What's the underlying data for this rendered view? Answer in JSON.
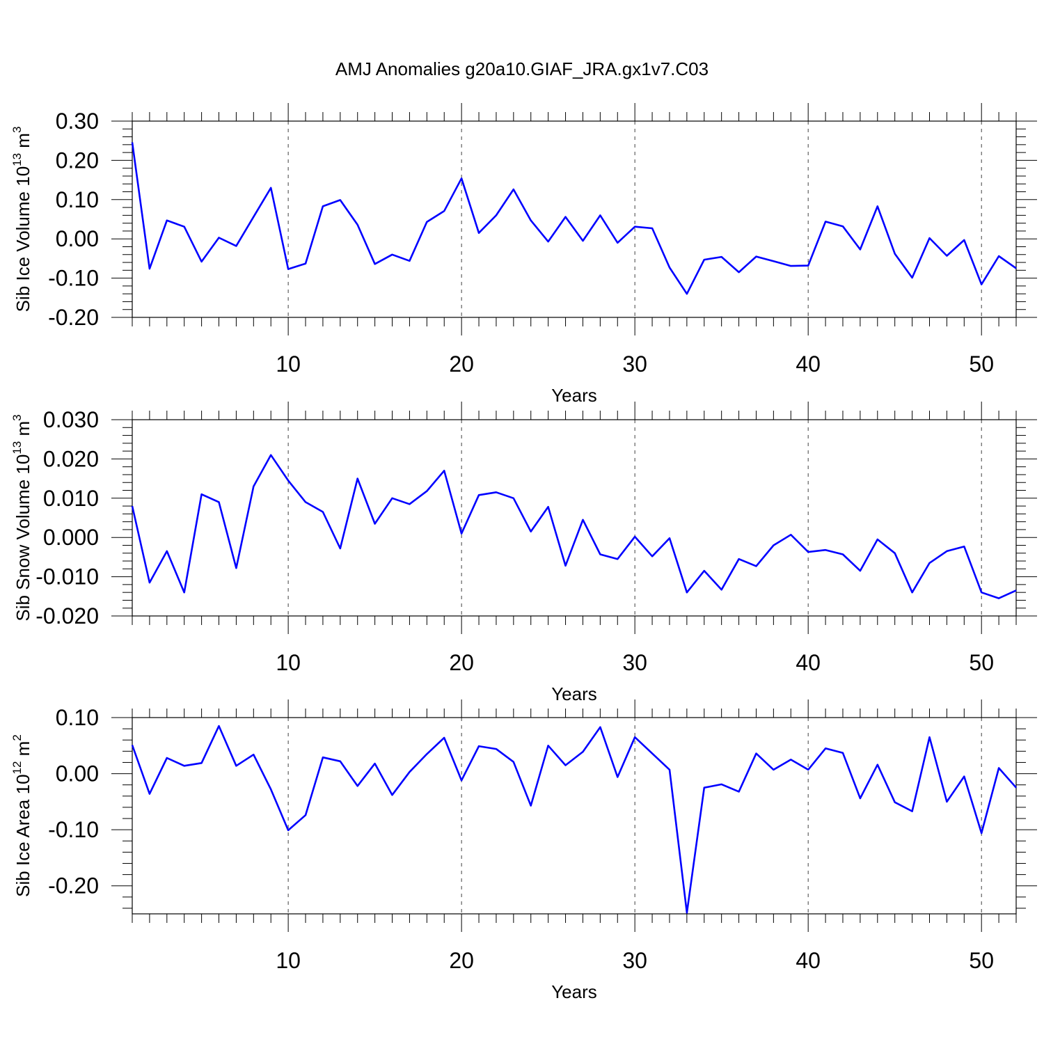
{
  "title": "AMJ Anomalies g20a10.GIAF_JRA.gx1v7.C03",
  "colors": {
    "line": "#0000ff",
    "axis": "#000000",
    "grid": "#000000",
    "background": "#ffffff"
  },
  "chart_data": [
    {
      "type": "line",
      "title": "",
      "xlabel": "Years",
      "ylabel": "Sib Ice Volume 10",
      "ylabel_sup": "13",
      "ylabel_unit": " m",
      "ylabel_unit_sup": "3",
      "xlim": [
        1,
        52
      ],
      "ylim": [
        -0.2,
        0.3
      ],
      "xticks": [
        10,
        20,
        30,
        40,
        50
      ],
      "yticks": [
        0.3,
        0.2,
        0.1,
        0.0,
        -0.1,
        -0.2
      ],
      "ytick_labels": [
        "0.30",
        "0.20",
        "0.10",
        "0.00",
        "-0.10",
        "-0.20"
      ],
      "grid": "vertical dashed at major x ticks",
      "x": [
        1,
        2,
        3,
        4,
        5,
        6,
        7,
        8,
        9,
        10,
        11,
        12,
        13,
        14,
        15,
        16,
        17,
        18,
        19,
        20,
        21,
        22,
        23,
        24,
        25,
        26,
        27,
        28,
        29,
        30,
        31,
        32,
        33,
        34,
        35,
        36,
        37,
        38,
        39,
        40,
        41,
        42,
        43,
        44,
        45,
        46,
        47,
        48,
        49,
        50,
        51,
        52
      ],
      "series": [
        {
          "values": [
            0.246,
            -0.076,
            0.047,
            0.031,
            -0.058,
            0.003,
            -0.018,
            0.056,
            0.13,
            -0.077,
            -0.063,
            0.083,
            0.099,
            0.036,
            -0.064,
            -0.04,
            -0.056,
            0.043,
            0.071,
            0.154,
            0.015,
            0.06,
            0.126,
            0.047,
            -0.007,
            0.056,
            -0.005,
            0.06,
            -0.01,
            0.031,
            0.027,
            -0.073,
            -0.14,
            -0.053,
            -0.046,
            -0.085,
            -0.045,
            -0.057,
            -0.069,
            -0.068,
            0.044,
            0.032,
            -0.027,
            0.083,
            -0.038,
            -0.099,
            0.002,
            -0.043,
            -0.003,
            -0.116,
            -0.044,
            -0.075
          ]
        }
      ]
    },
    {
      "type": "line",
      "title": "",
      "xlabel": "Years",
      "ylabel": "Sib Snow Volume 10",
      "ylabel_sup": "13",
      "ylabel_unit": " m",
      "ylabel_unit_sup": "3",
      "xlim": [
        1,
        52
      ],
      "ylim": [
        -0.02,
        0.03
      ],
      "xticks": [
        10,
        20,
        30,
        40,
        50
      ],
      "yticks": [
        0.03,
        0.02,
        0.01,
        0.0,
        -0.01,
        -0.02
      ],
      "ytick_labels": [
        "0.030",
        "0.020",
        "0.010",
        "0.000",
        "-0.010",
        "-0.020"
      ],
      "grid": "vertical dashed at major x ticks",
      "x": [
        1,
        2,
        3,
        4,
        5,
        6,
        7,
        8,
        9,
        10,
        11,
        12,
        13,
        14,
        15,
        16,
        17,
        18,
        19,
        20,
        21,
        22,
        23,
        24,
        25,
        26,
        27,
        28,
        29,
        30,
        31,
        32,
        33,
        34,
        35,
        36,
        37,
        38,
        39,
        40,
        41,
        42,
        43,
        44,
        45,
        46,
        47,
        48,
        49,
        50,
        51,
        52
      ],
      "series": [
        {
          "values": [
            0.008,
            -0.0115,
            -0.0035,
            -0.014,
            0.011,
            0.009,
            -0.0078,
            0.013,
            0.021,
            0.0145,
            0.009,
            0.0065,
            -0.0028,
            0.015,
            0.0035,
            0.01,
            0.0085,
            0.0118,
            0.017,
            0.001,
            0.0108,
            0.0115,
            0.01,
            0.0015,
            0.0078,
            -0.0072,
            0.0045,
            -0.0043,
            -0.0055,
            0.0002,
            -0.0048,
            -0.0002,
            -0.014,
            -0.0085,
            -0.0133,
            -0.0055,
            -0.0073,
            -0.002,
            0.0007,
            -0.0037,
            -0.0032,
            -0.0043,
            -0.0085,
            -0.0005,
            -0.004,
            -0.014,
            -0.0065,
            -0.0035,
            -0.0023,
            -0.014,
            -0.0155,
            -0.0135
          ]
        }
      ]
    },
    {
      "type": "line",
      "title": "",
      "xlabel": "Years",
      "ylabel": "Sib Ice Area 10",
      "ylabel_sup": "12",
      "ylabel_unit": " m",
      "ylabel_unit_sup": "2",
      "xlim": [
        1,
        52
      ],
      "ylim": [
        -0.25,
        0.1
      ],
      "xticks": [
        10,
        20,
        30,
        40,
        50
      ],
      "yticks": [
        0.1,
        0.0,
        -0.1,
        -0.2
      ],
      "ytick_labels": [
        "0.10",
        "0.00",
        "-0.10",
        "-0.20"
      ],
      "grid": "vertical dashed at major x ticks",
      "x": [
        1,
        2,
        3,
        4,
        5,
        6,
        7,
        8,
        9,
        10,
        11,
        12,
        13,
        14,
        15,
        16,
        17,
        18,
        19,
        20,
        21,
        22,
        23,
        24,
        25,
        26,
        27,
        28,
        29,
        30,
        31,
        32,
        33,
        34,
        35,
        36,
        37,
        38,
        39,
        40,
        41,
        42,
        43,
        44,
        45,
        46,
        47,
        48,
        49,
        50,
        51,
        52
      ],
      "series": [
        {
          "values": [
            0.051,
            -0.036,
            0.028,
            0.014,
            0.019,
            0.085,
            0.014,
            0.034,
            -0.028,
            -0.101,
            -0.074,
            0.029,
            0.022,
            -0.022,
            0.018,
            -0.038,
            0.003,
            0.035,
            0.064,
            -0.012,
            0.049,
            0.044,
            0.021,
            -0.057,
            0.05,
            0.015,
            0.039,
            0.083,
            -0.006,
            0.065,
            0.036,
            0.007,
            -0.248,
            -0.025,
            -0.019,
            -0.032,
            0.036,
            0.007,
            0.025,
            0.007,
            0.045,
            0.037,
            -0.044,
            0.016,
            -0.051,
            -0.067,
            0.065,
            -0.05,
            -0.005,
            -0.106,
            0.01,
            -0.025
          ]
        }
      ]
    }
  ]
}
